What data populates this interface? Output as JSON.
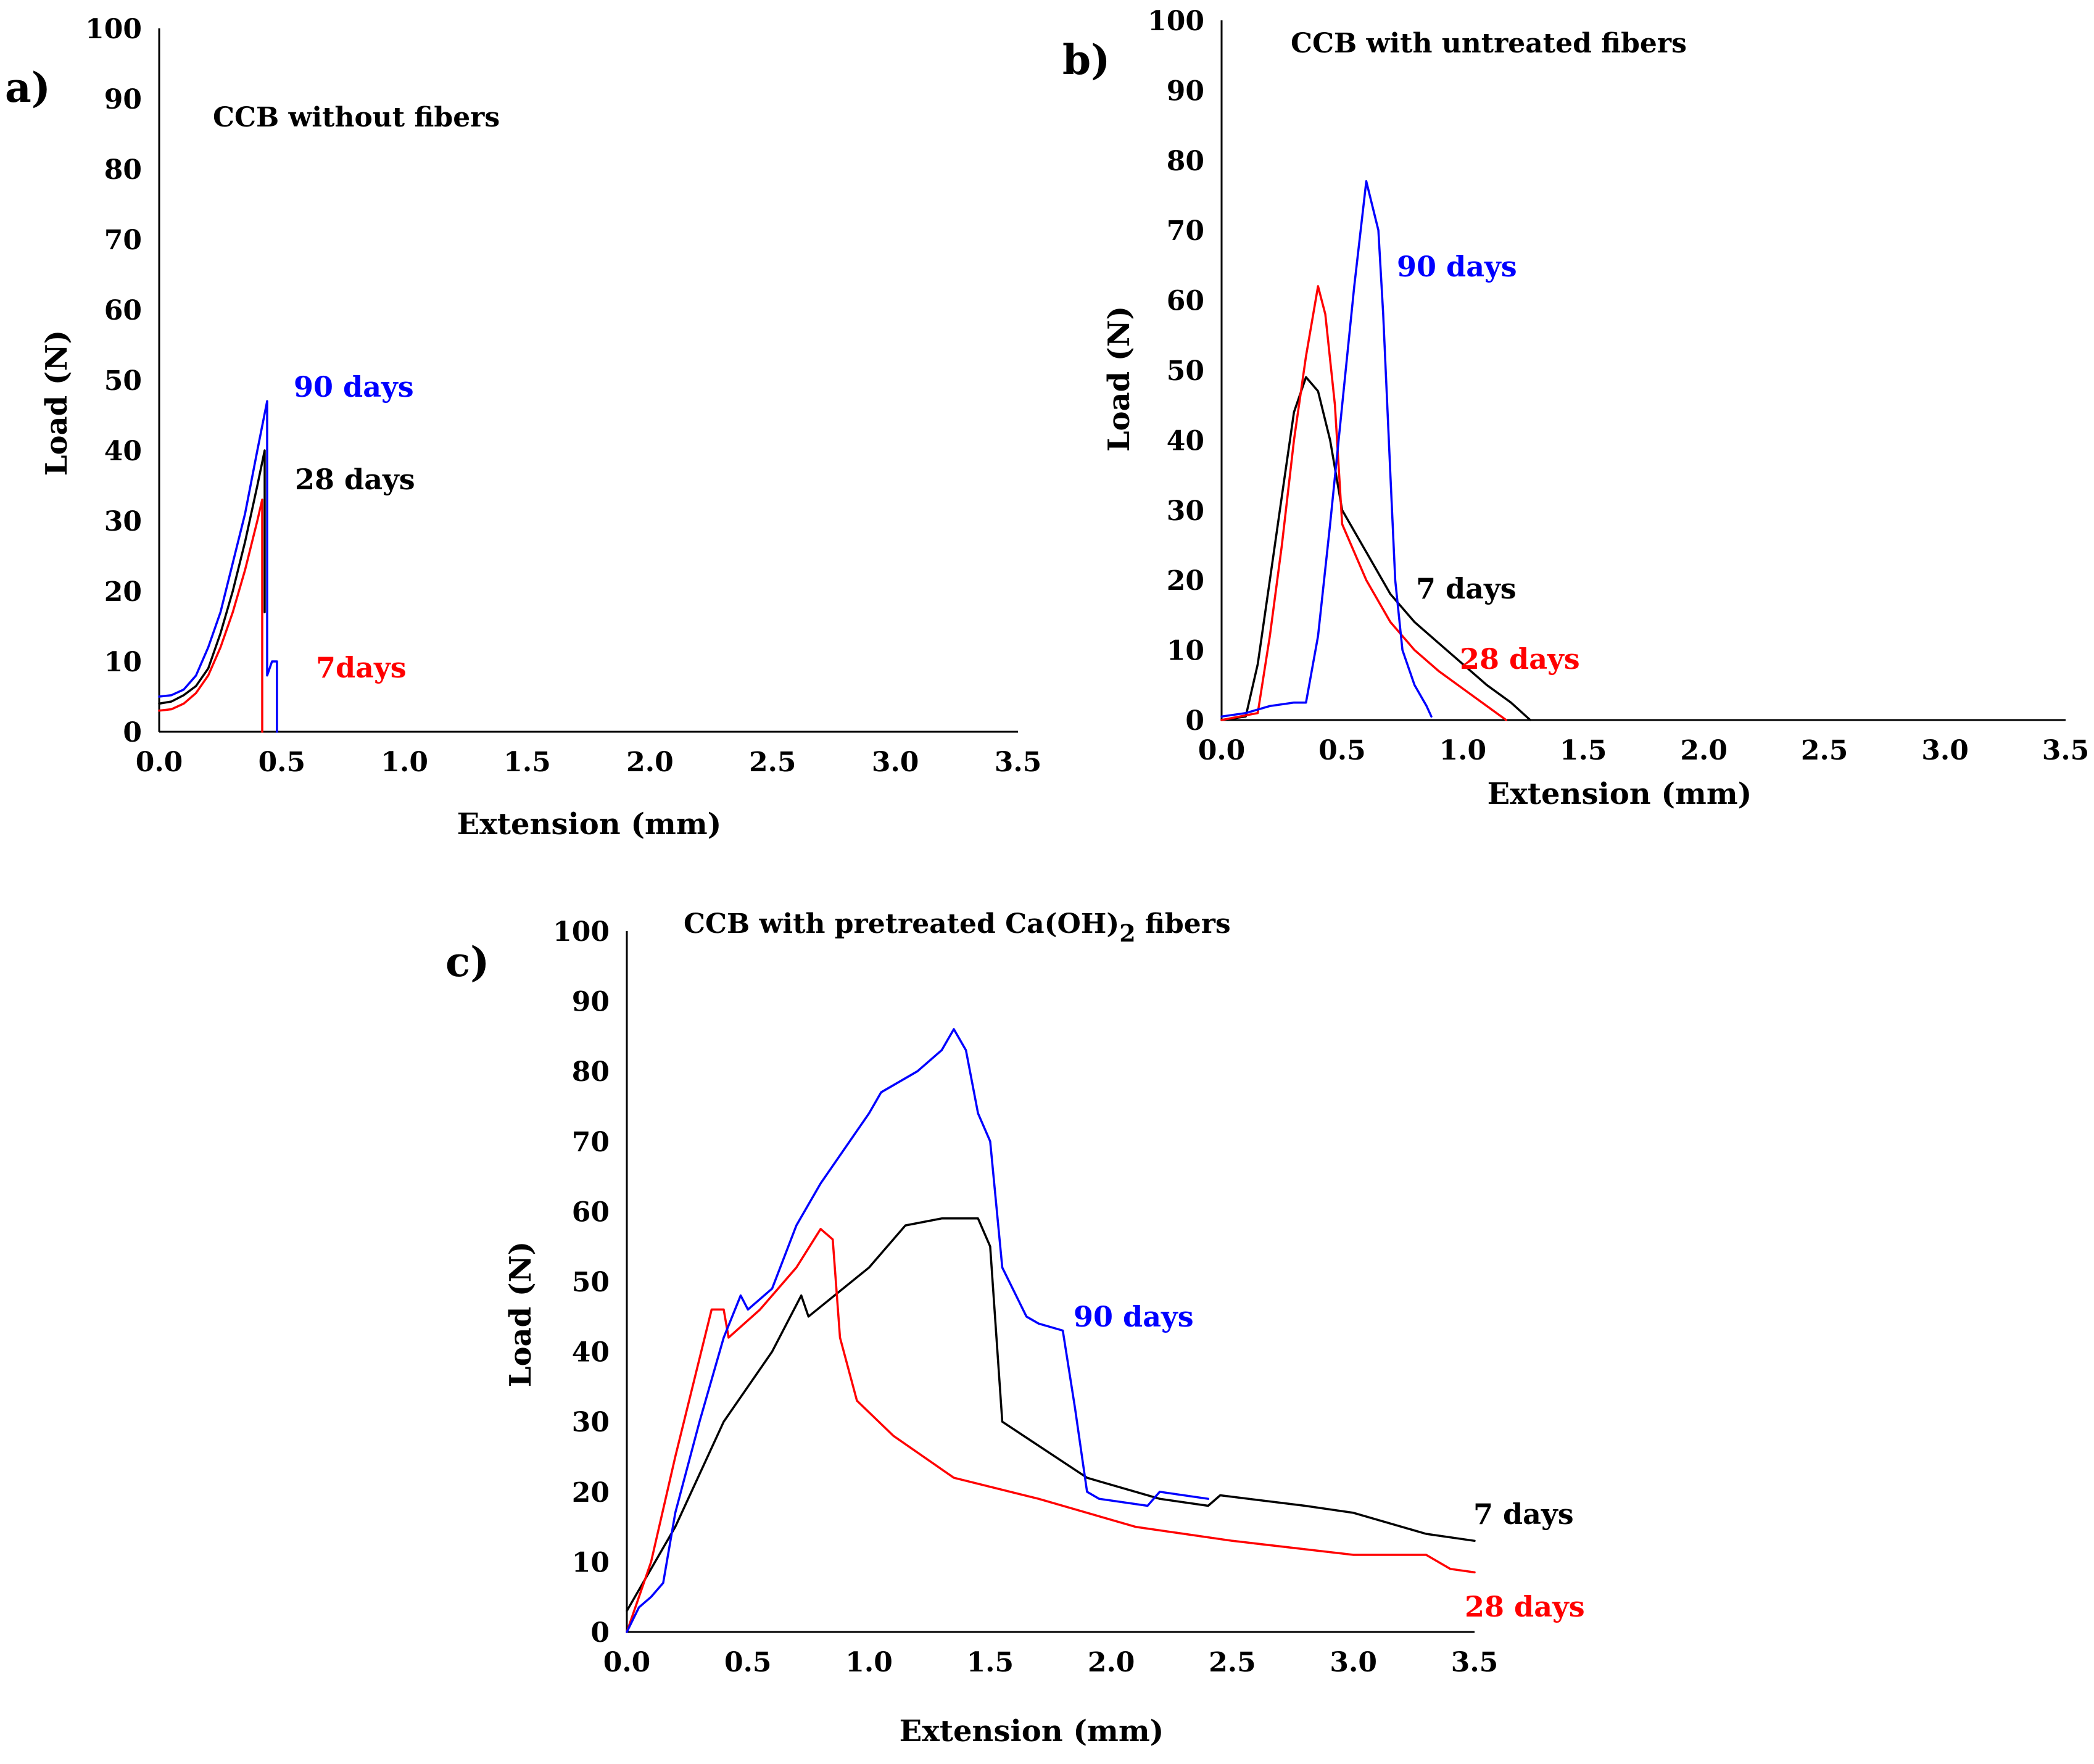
{
  "chart_data": [
    {
      "type": "line",
      "panel_label": "a)",
      "title": "CCB without fibers",
      "xlabel": "Extension (mm)",
      "ylabel": "Load (N)",
      "xlim": [
        0,
        3.5
      ],
      "ylim": [
        0,
        100
      ],
      "x_ticks": [
        "0.0",
        "0.5",
        "1.0",
        "1.5",
        "2.0",
        "2.5",
        "3.0",
        "3.5"
      ],
      "y_ticks": [
        "0",
        "10",
        "20",
        "30",
        "40",
        "50",
        "60",
        "70",
        "80",
        "90",
        "100"
      ],
      "grid": false,
      "series": [
        {
          "name": "7days",
          "color": "#ff0000",
          "points": [
            [
              0,
              3
            ],
            [
              0.05,
              3.2
            ],
            [
              0.1,
              4
            ],
            [
              0.15,
              5.5
            ],
            [
              0.2,
              8
            ],
            [
              0.25,
              12
            ],
            [
              0.3,
              17
            ],
            [
              0.35,
              23
            ],
            [
              0.4,
              30
            ],
            [
              0.42,
              33
            ],
            [
              0.42,
              20
            ],
            [
              0.42,
              0
            ]
          ]
        },
        {
          "name": "28 days",
          "color": "#000000",
          "points": [
            [
              0,
              4
            ],
            [
              0.05,
              4.3
            ],
            [
              0.1,
              5.2
            ],
            [
              0.15,
              6.5
            ],
            [
              0.2,
              9
            ],
            [
              0.25,
              14
            ],
            [
              0.3,
              20
            ],
            [
              0.35,
              27
            ],
            [
              0.4,
              35
            ],
            [
              0.43,
              40
            ],
            [
              0.43,
              31
            ],
            [
              0.43,
              17
            ]
          ]
        },
        {
          "name": "90 days",
          "color": "#0000ff",
          "points": [
            [
              0,
              5
            ],
            [
              0.05,
              5.2
            ],
            [
              0.1,
              6
            ],
            [
              0.15,
              8
            ],
            [
              0.2,
              12
            ],
            [
              0.25,
              17
            ],
            [
              0.3,
              24
            ],
            [
              0.35,
              31
            ],
            [
              0.4,
              40
            ],
            [
              0.44,
              47
            ],
            [
              0.44,
              8
            ],
            [
              0.46,
              10
            ],
            [
              0.48,
              10
            ],
            [
              0.48,
              0
            ]
          ]
        }
      ]
    },
    {
      "type": "line",
      "panel_label": "b)",
      "title": "CCB with untreated fibers",
      "xlabel": "Extension (mm)",
      "ylabel": "Load (N)",
      "xlim": [
        0,
        3.5
      ],
      "ylim": [
        0,
        100
      ],
      "x_ticks": [
        "0.0",
        "0.5",
        "1.0",
        "1.5",
        "2.0",
        "2.5",
        "3.0",
        "3.5"
      ],
      "y_ticks": [
        "0",
        "10",
        "20",
        "30",
        "40",
        "50",
        "60",
        "70",
        "80",
        "90",
        "100"
      ],
      "grid": false,
      "series": [
        {
          "name": "7 days",
          "color": "#000000",
          "points": [
            [
              0,
              0
            ],
            [
              0.1,
              0.5
            ],
            [
              0.15,
              8
            ],
            [
              0.2,
              20
            ],
            [
              0.25,
              32
            ],
            [
              0.3,
              44
            ],
            [
              0.35,
              49
            ],
            [
              0.4,
              47
            ],
            [
              0.45,
              40
            ],
            [
              0.5,
              30
            ],
            [
              0.6,
              24
            ],
            [
              0.7,
              18
            ],
            [
              0.8,
              14
            ],
            [
              0.9,
              11
            ],
            [
              1.0,
              8
            ],
            [
              1.1,
              5
            ],
            [
              1.2,
              2.5
            ],
            [
              1.28,
              0
            ]
          ]
        },
        {
          "name": "28 days",
          "color": "#ff0000",
          "points": [
            [
              0,
              0
            ],
            [
              0.15,
              1
            ],
            [
              0.2,
              12
            ],
            [
              0.25,
              25
            ],
            [
              0.3,
              40
            ],
            [
              0.35,
              52
            ],
            [
              0.4,
              62
            ],
            [
              0.43,
              58
            ],
            [
              0.47,
              45
            ],
            [
              0.5,
              28
            ],
            [
              0.6,
              20
            ],
            [
              0.7,
              14
            ],
            [
              0.8,
              10
            ],
            [
              0.9,
              7
            ],
            [
              1.0,
              4.5
            ],
            [
              1.1,
              2
            ],
            [
              1.18,
              0
            ]
          ]
        },
        {
          "name": "90 days",
          "color": "#0000ff",
          "points": [
            [
              0,
              0.5
            ],
            [
              0.1,
              1
            ],
            [
              0.2,
              2
            ],
            [
              0.3,
              2.5
            ],
            [
              0.35,
              2.5
            ],
            [
              0.4,
              12
            ],
            [
              0.45,
              28
            ],
            [
              0.5,
              45
            ],
            [
              0.55,
              62
            ],
            [
              0.6,
              77
            ],
            [
              0.65,
              70
            ],
            [
              0.67,
              58
            ],
            [
              0.7,
              35
            ],
            [
              0.72,
              20
            ],
            [
              0.75,
              10
            ],
            [
              0.8,
              5
            ],
            [
              0.85,
              2
            ],
            [
              0.87,
              0.5
            ]
          ]
        }
      ]
    },
    {
      "type": "line",
      "panel_label": "c)",
      "title": "CCB with pretreated Ca(OH)2 fibers",
      "xlabel": "Extension (mm)",
      "ylabel": "Load (N)",
      "xlim": [
        0,
        3.5
      ],
      "ylim": [
        0,
        100
      ],
      "x_ticks": [
        "0.0",
        "0.5",
        "1.0",
        "1.5",
        "2.0",
        "2.5",
        "3.0",
        "3.5"
      ],
      "y_ticks": [
        "0",
        "10",
        "20",
        "30",
        "40",
        "50",
        "60",
        "70",
        "80",
        "90",
        "100"
      ],
      "grid": false,
      "series": [
        {
          "name": "7 days",
          "color": "#000000",
          "points": [
            [
              0,
              3
            ],
            [
              0.2,
              15
            ],
            [
              0.4,
              30
            ],
            [
              0.6,
              40
            ],
            [
              0.72,
              48
            ],
            [
              0.75,
              45
            ],
            [
              1.0,
              52
            ],
            [
              1.15,
              58
            ],
            [
              1.3,
              59
            ],
            [
              1.45,
              59
            ],
            [
              1.5,
              55
            ],
            [
              1.55,
              30
            ],
            [
              1.9,
              22
            ],
            [
              2.2,
              19
            ],
            [
              2.4,
              18
            ],
            [
              2.45,
              19.5
            ],
            [
              2.8,
              18
            ],
            [
              3.0,
              17
            ],
            [
              3.3,
              14
            ],
            [
              3.5,
              13
            ]
          ]
        },
        {
          "name": "28 days",
          "color": "#ff0000",
          "points": [
            [
              0,
              0
            ],
            [
              0.1,
              10
            ],
            [
              0.2,
              25
            ],
            [
              0.35,
              46
            ],
            [
              0.4,
              46
            ],
            [
              0.42,
              42
            ],
            [
              0.55,
              46
            ],
            [
              0.7,
              52
            ],
            [
              0.8,
              57.5
            ],
            [
              0.85,
              56
            ],
            [
              0.88,
              42
            ],
            [
              0.95,
              33
            ],
            [
              1.1,
              28
            ],
            [
              1.35,
              22
            ],
            [
              1.7,
              19
            ],
            [
              2.1,
              15
            ],
            [
              2.5,
              13
            ],
            [
              3.0,
              11
            ],
            [
              3.3,
              11
            ],
            [
              3.4,
              9
            ],
            [
              3.5,
              8.5
            ]
          ]
        },
        {
          "name": "90 days",
          "color": "#0000ff",
          "points": [
            [
              0,
              0
            ],
            [
              0.05,
              3.5
            ],
            [
              0.1,
              5
            ],
            [
              0.15,
              7
            ],
            [
              0.2,
              17
            ],
            [
              0.3,
              30
            ],
            [
              0.4,
              42
            ],
            [
              0.47,
              48
            ],
            [
              0.5,
              46
            ],
            [
              0.6,
              49
            ],
            [
              0.7,
              58
            ],
            [
              0.8,
              64
            ],
            [
              0.9,
              69
            ],
            [
              1.0,
              74
            ],
            [
              1.05,
              77
            ],
            [
              1.2,
              80
            ],
            [
              1.3,
              83
            ],
            [
              1.35,
              86
            ],
            [
              1.4,
              83
            ],
            [
              1.45,
              74
            ],
            [
              1.5,
              70
            ],
            [
              1.55,
              52
            ],
            [
              1.65,
              45
            ],
            [
              1.7,
              44
            ],
            [
              1.8,
              43
            ],
            [
              1.85,
              32
            ],
            [
              1.9,
              20
            ],
            [
              1.95,
              19
            ],
            [
              2.15,
              18
            ],
            [
              2.2,
              20
            ],
            [
              2.4,
              19
            ]
          ]
        }
      ]
    }
  ]
}
